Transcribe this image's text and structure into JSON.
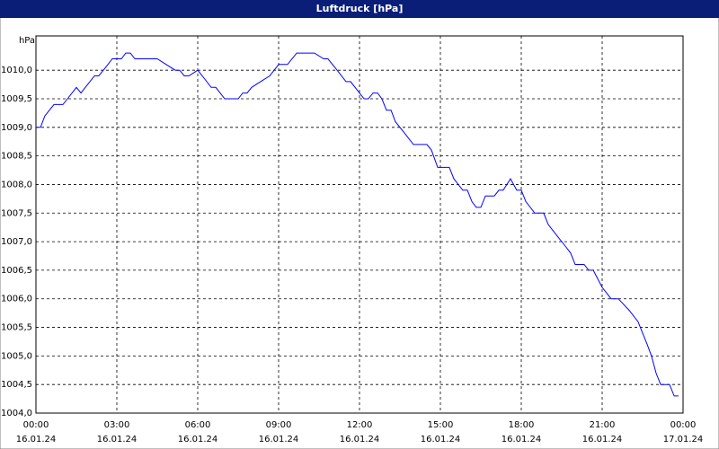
{
  "chart_data": {
    "type": "line",
    "title": "Luftdruck [hPa]",
    "y_unit": "hPa",
    "xlim": [
      0,
      24
    ],
    "ylim": [
      1004,
      1010.6
    ],
    "xticks": [
      {
        "value": 0,
        "label": "00:00"
      },
      {
        "value": 3,
        "label": "03:00"
      },
      {
        "value": 6,
        "label": "06:00"
      },
      {
        "value": 9,
        "label": "09:00"
      },
      {
        "value": 12,
        "label": "12:00"
      },
      {
        "value": 15,
        "label": "15:00"
      },
      {
        "value": 18,
        "label": "18:00"
      },
      {
        "value": 21,
        "label": "21:00"
      },
      {
        "value": 24,
        "label": "00:00"
      }
    ],
    "xtick_dates": [
      "16.01.24",
      "16.01.24",
      "16.01.24",
      "16.01.24",
      "16.01.24",
      "16.01.24",
      "16.01.24",
      "16.01.24",
      "17.01.24"
    ],
    "yticks": [
      {
        "value": 1004,
        "label": "1004,0"
      },
      {
        "value": 1004.5,
        "label": "1004,5"
      },
      {
        "value": 1005,
        "label": "1005,0"
      },
      {
        "value": 1005.5,
        "label": "1005,5"
      },
      {
        "value": 1006,
        "label": "1006,0"
      },
      {
        "value": 1006.5,
        "label": "1006,5"
      },
      {
        "value": 1007,
        "label": "1007,0"
      },
      {
        "value": 1007.5,
        "label": "1007,5"
      },
      {
        "value": 1008,
        "label": "1008,0"
      },
      {
        "value": 1008.5,
        "label": "1008,5"
      },
      {
        "value": 1009,
        "label": "1009,0"
      },
      {
        "value": 1009.5,
        "label": "1009,5"
      },
      {
        "value": 1010,
        "label": "1010,0"
      }
    ],
    "grid": true,
    "series": [
      {
        "name": "Luftdruck",
        "color": "#0000ff",
        "x": [
          0,
          0.17,
          0.33,
          0.5,
          0.67,
          1,
          1.17,
          1.5,
          1.67,
          1.83,
          2,
          2.17,
          2.33,
          2.5,
          2.67,
          2.83,
          3.17,
          3.33,
          3.5,
          3.67,
          4.5,
          4.83,
          5.17,
          5.33,
          5.5,
          5.67,
          6,
          6.17,
          6.5,
          6.67,
          7,
          7.5,
          7.67,
          7.83,
          8,
          8.33,
          8.67,
          9,
          9.33,
          9.67,
          10.33,
          10.67,
          10.83,
          11.17,
          11.5,
          11.67,
          12,
          12.17,
          12.33,
          12.5,
          12.67,
          12.83,
          13,
          13.17,
          13.33,
          13.67,
          14,
          14.5,
          14.67,
          14.9,
          15.33,
          15.5,
          15.83,
          16,
          16.17,
          16.33,
          16.5,
          16.67,
          17,
          17.17,
          17.33,
          17.6,
          17.83,
          18,
          18.17,
          18.5,
          18.83,
          19,
          19.33,
          19.67,
          19.83,
          20,
          20.33,
          20.5,
          20.67,
          21,
          21.17,
          21.33,
          21.6,
          22,
          22.33,
          22.5,
          22.67,
          22.83,
          23,
          23.17,
          23.5,
          23.67,
          23.83
        ],
        "values": [
          1009.0,
          1009.0,
          1009.2,
          1009.3,
          1009.4,
          1009.4,
          1009.5,
          1009.7,
          1009.6,
          1009.7,
          1009.8,
          1009.9,
          1009.9,
          1010.0,
          1010.1,
          1010.2,
          1010.2,
          1010.3,
          1010.3,
          1010.2,
          1010.2,
          1010.1,
          1010.0,
          1010.0,
          1009.9,
          1009.9,
          1010.0,
          1009.9,
          1009.7,
          1009.7,
          1009.5,
          1009.5,
          1009.6,
          1009.6,
          1009.7,
          1009.8,
          1009.9,
          1010.1,
          1010.1,
          1010.3,
          1010.3,
          1010.2,
          1010.2,
          1010.0,
          1009.8,
          1009.8,
          1009.6,
          1009.5,
          1009.5,
          1009.6,
          1009.6,
          1009.5,
          1009.3,
          1009.3,
          1009.1,
          1008.9,
          1008.7,
          1008.7,
          1008.6,
          1008.3,
          1008.3,
          1008.1,
          1007.9,
          1007.9,
          1007.7,
          1007.6,
          1007.6,
          1007.8,
          1007.8,
          1007.9,
          1007.9,
          1008.1,
          1007.9,
          1007.9,
          1007.7,
          1007.5,
          1007.5,
          1007.3,
          1007.1,
          1006.9,
          1006.8,
          1006.6,
          1006.6,
          1006.5,
          1006.5,
          1006.2,
          1006.1,
          1006.0,
          1006.0,
          1005.8,
          1005.6,
          1005.4,
          1005.2,
          1005.0,
          1004.7,
          1004.5,
          1004.5,
          1004.3,
          1004.3
        ]
      }
    ]
  }
}
